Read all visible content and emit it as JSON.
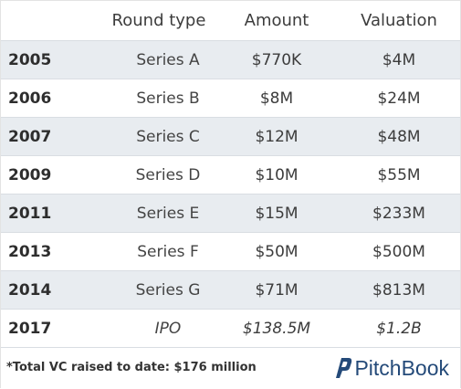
{
  "table": {
    "headers": {
      "year": "",
      "round_type": "Round type",
      "amount": "Amount",
      "valuation": "Valuation"
    },
    "rows": [
      {
        "year": "2005",
        "round": "Series A",
        "amount": "$770K",
        "valuation": "$4M"
      },
      {
        "year": "2006",
        "round": "Series B",
        "amount": "$8M",
        "valuation": "$24M"
      },
      {
        "year": "2007",
        "round": "Series C",
        "amount": "$12M",
        "valuation": "$48M"
      },
      {
        "year": "2009",
        "round": "Series D",
        "amount": "$10M",
        "valuation": "$55M"
      },
      {
        "year": "2011",
        "round": "Series E",
        "amount": "$15M",
        "valuation": "$233M"
      },
      {
        "year": "2013",
        "round": "Series F",
        "amount": "$50M",
        "valuation": "$500M"
      },
      {
        "year": "2014",
        "round": "Series G",
        "amount": "$71M",
        "valuation": "$813M"
      },
      {
        "year": "2017",
        "round": "IPO",
        "amount": "$138.5M",
        "valuation": "$1.2B"
      }
    ]
  },
  "footer": {
    "note": "*Total VC raised to date: $176 million",
    "logo_text": "PitchBook"
  },
  "colors": {
    "row_alt_bg": "#e8ecf0",
    "text": "#3c3c3c",
    "logo": "#244a79"
  }
}
